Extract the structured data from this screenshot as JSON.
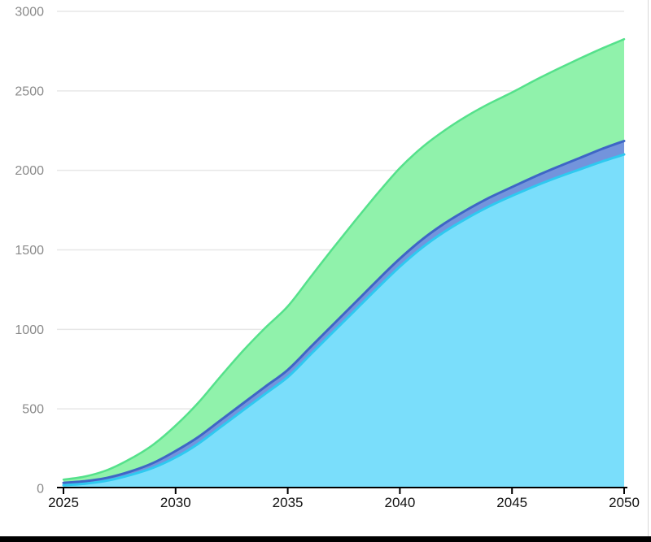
{
  "chart_data": {
    "type": "area",
    "stacked": true,
    "title": "",
    "xlabel": "",
    "ylabel": "",
    "xlim": [
      2025,
      2050
    ],
    "ylim": [
      0,
      3000
    ],
    "grid": "horizontal",
    "legend": "none",
    "x": [
      2025,
      2026,
      2027,
      2028,
      2029,
      2030,
      2031,
      2032,
      2033,
      2034,
      2035,
      2036,
      2037,
      2038,
      2039,
      2040,
      2041,
      2042,
      2043,
      2044,
      2045,
      2046,
      2047,
      2048,
      2049,
      2050
    ],
    "series": [
      {
        "name": "series-cyan-bottom",
        "fill": "#7adefb",
        "stroke": "#2ec9f0",
        "stroke_width": 3,
        "values": [
          20,
          30,
          50,
          85,
          130,
          195,
          280,
          385,
          490,
          595,
          700,
          840,
          980,
          1120,
          1260,
          1395,
          1515,
          1615,
          1700,
          1775,
          1840,
          1900,
          1955,
          2005,
          2055,
          2100
        ]
      },
      {
        "name": "series-blue-middle",
        "fill": "#7394dc",
        "stroke": "#3e66c6",
        "stroke_width": 3,
        "values": [
          15,
          16,
          18,
          22,
          30,
          40,
          42,
          43,
          44,
          45,
          45,
          46,
          47,
          48,
          49,
          50,
          51,
          52,
          53,
          54,
          55,
          60,
          65,
          72,
          79,
          85
        ]
      },
      {
        "name": "series-green-top",
        "fill": "#90f2ab",
        "stroke": "#55e18b",
        "stroke_width": 2.5,
        "values": [
          20,
          30,
          50,
          80,
          115,
          160,
          215,
          275,
          330,
          370,
          400,
          440,
          480,
          515,
          545,
          570,
          580,
          585,
          590,
          592,
          595,
          605,
          615,
          625,
          632,
          640
        ]
      }
    ],
    "xticks": [
      "2025",
      "2030",
      "2035",
      "2040",
      "2045",
      "2050"
    ],
    "yticks": [
      "0",
      "500",
      "1000",
      "1500",
      "2000",
      "2500",
      "3000"
    ]
  },
  "axes": {
    "y_label_color": "#8a8a8a",
    "x_label_color": "#111111",
    "gridline_color": "#e7e7e7",
    "axis_line_color": "#000000"
  },
  "frame": {
    "bottom_bar_color": "#000000",
    "right_border_color": "#d9d9d9"
  }
}
